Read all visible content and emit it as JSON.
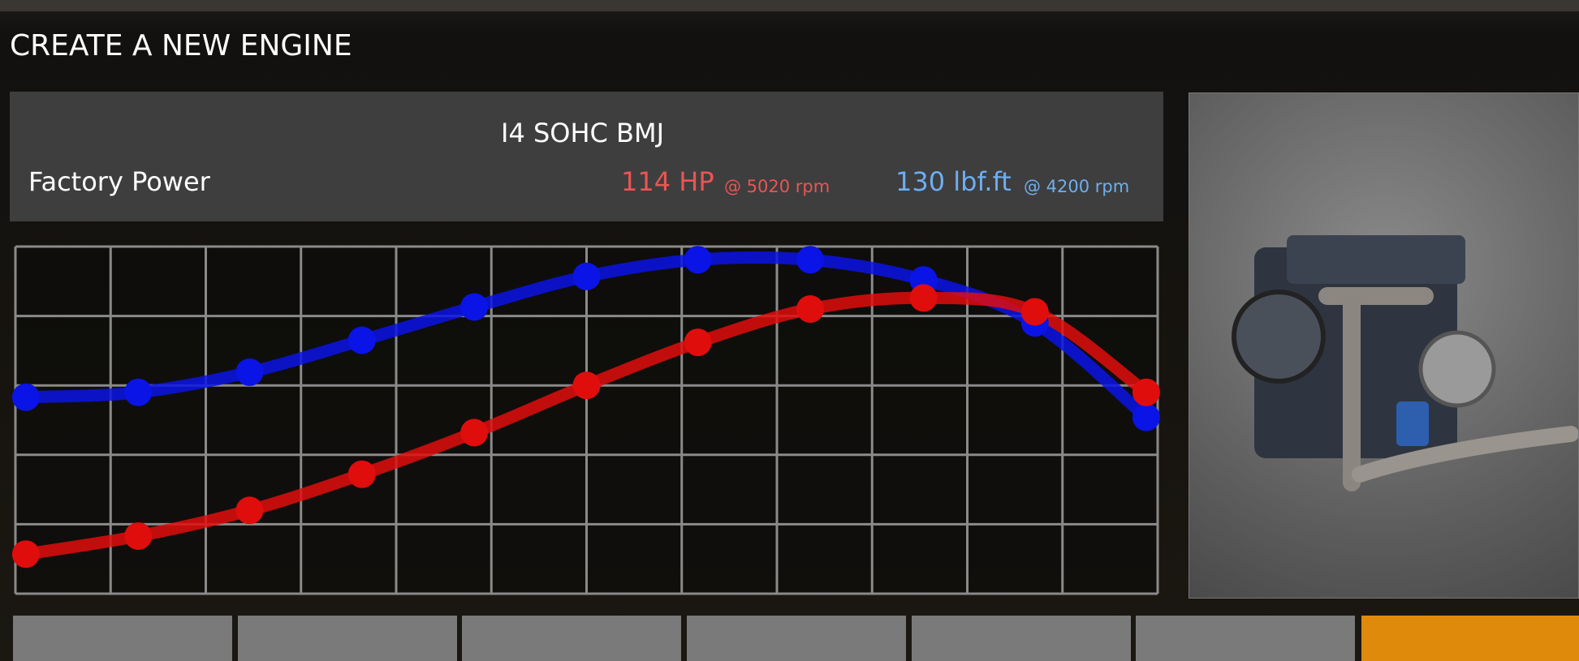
{
  "header": {
    "title": "CREATE A NEW ENGINE"
  },
  "engine_panel": {
    "name": "I4 SOHC BMJ",
    "label": "Factory Power",
    "power": "114 HP",
    "power_rpm": "@ 5020 rpm",
    "torque": "130 lbf.ft",
    "torque_rpm": "@ 4200 rpm"
  },
  "chart_data": {
    "type": "line",
    "x": [
      0.11,
      1.29,
      2.46,
      3.64,
      4.82,
      6.0,
      7.17,
      8.35,
      9.54,
      10.71,
      11.88
    ],
    "series": [
      {
        "color": "#0a14e6",
        "values": [
          2.83,
          2.9,
          3.19,
          3.65,
          4.13,
          4.57,
          4.81,
          4.81,
          4.52,
          3.9,
          2.54
        ]
      },
      {
        "color": "#e00d0d",
        "values": [
          0.57,
          0.83,
          1.2,
          1.72,
          2.32,
          3.0,
          3.62,
          4.1,
          4.26,
          4.06,
          2.9
        ]
      }
    ],
    "xlim": [
      0,
      12
    ],
    "xticks": [
      0,
      1,
      2,
      3,
      4,
      5,
      6,
      7,
      8,
      9,
      10,
      11,
      12
    ],
    "ylim": [
      0,
      5
    ],
    "yticks": [
      0,
      1,
      2,
      3,
      4,
      5
    ],
    "grid": true
  }
}
